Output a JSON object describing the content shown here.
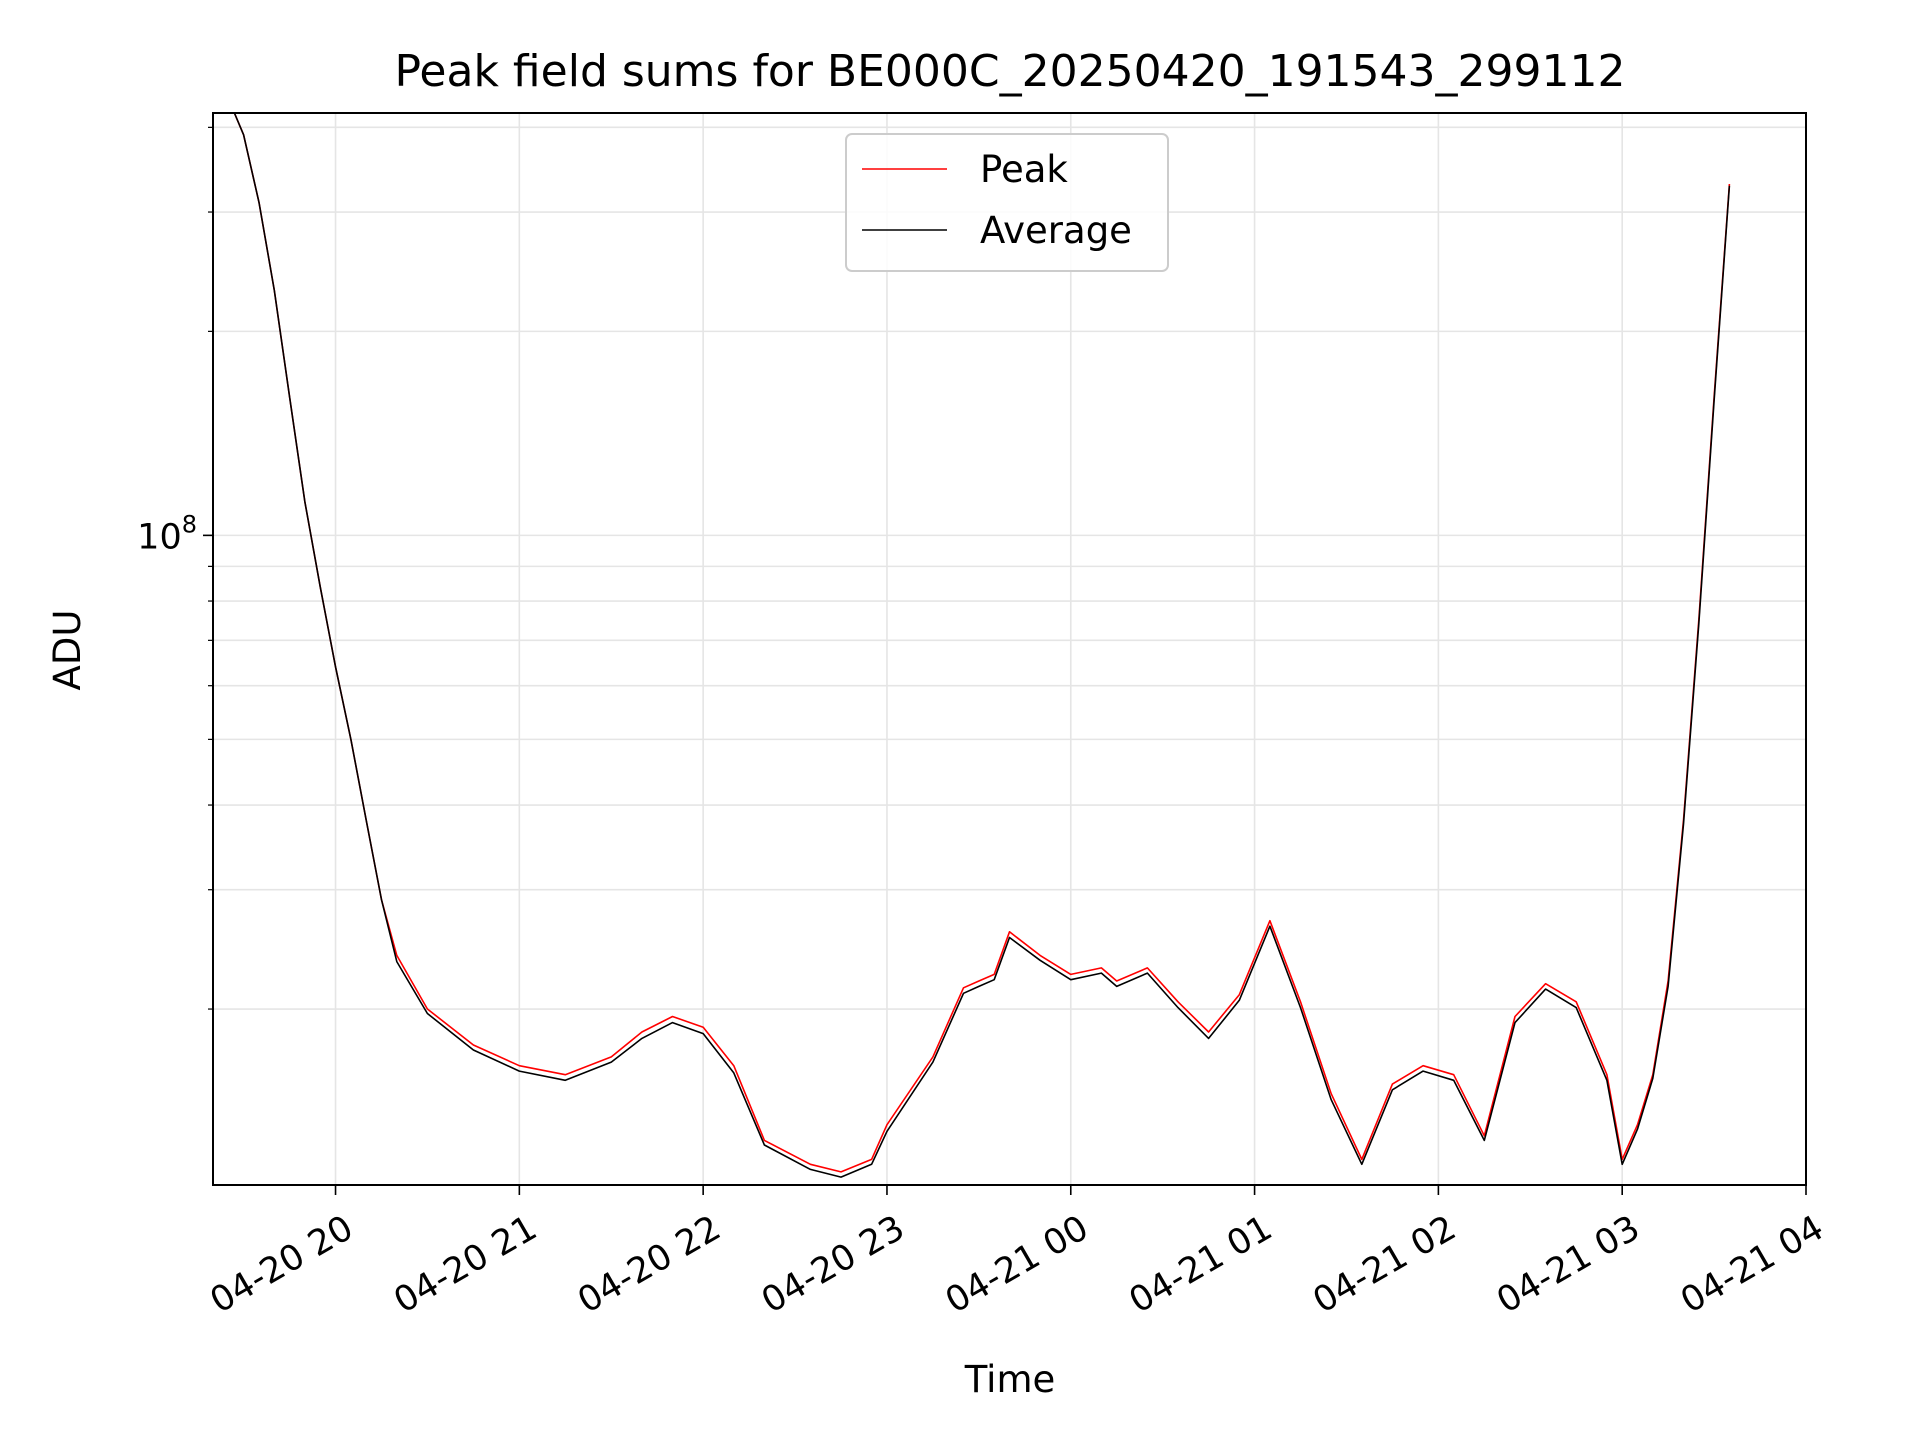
{
  "chart_data": {
    "type": "line",
    "title": "Peak field sums for BE000C_20250420_191543_299112",
    "xlabel": "Time",
    "ylabel": "ADU",
    "y_scale": "log",
    "grid": true,
    "legend_position": "top-center",
    "xlim": [
      "2025-04-20 19:20",
      "2025-04-21 04:00"
    ],
    "ylim": [
      11000000,
      420000000
    ],
    "x_ticks": [
      "04-20 20",
      "04-20 21",
      "04-20 22",
      "04-20 23",
      "04-21 00",
      "04-21 01",
      "04-21 02",
      "04-21 03",
      "04-21 04"
    ],
    "y_ticks": [
      {
        "value": 100000000,
        "label": "10^8"
      }
    ],
    "colors": {
      "peak": "#ff0000",
      "average": "#000000",
      "grid": "#e5e5e5"
    },
    "x": [
      "2025-04-20 19:27",
      "2025-04-20 19:30",
      "2025-04-20 19:35",
      "2025-04-20 19:40",
      "2025-04-20 19:45",
      "2025-04-20 19:50",
      "2025-04-20 19:55",
      "2025-04-20 20:00",
      "2025-04-20 20:05",
      "2025-04-20 20:10",
      "2025-04-20 20:15",
      "2025-04-20 20:20",
      "2025-04-20 20:30",
      "2025-04-20 20:45",
      "2025-04-20 21:00",
      "2025-04-20 21:15",
      "2025-04-20 21:30",
      "2025-04-20 21:40",
      "2025-04-20 21:50",
      "2025-04-20 22:00",
      "2025-04-20 22:10",
      "2025-04-20 22:20",
      "2025-04-20 22:35",
      "2025-04-20 22:45",
      "2025-04-20 22:55",
      "2025-04-20 23:00",
      "2025-04-20 23:15",
      "2025-04-20 23:25",
      "2025-04-20 23:30",
      "2025-04-20 23:35",
      "2025-04-20 23:40",
      "2025-04-20 23:50",
      "2025-04-21 00:00",
      "2025-04-21 00:10",
      "2025-04-21 00:15",
      "2025-04-21 00:25",
      "2025-04-21 00:35",
      "2025-04-21 00:45",
      "2025-04-21 00:55",
      "2025-04-21 01:05",
      "2025-04-21 01:15",
      "2025-04-21 01:25",
      "2025-04-21 01:35",
      "2025-04-21 01:45",
      "2025-04-21 01:55",
      "2025-04-21 02:05",
      "2025-04-21 02:15",
      "2025-04-21 02:25",
      "2025-04-21 02:35",
      "2025-04-21 02:45",
      "2025-04-21 02:55",
      "2025-04-21 03:00",
      "2025-04-21 03:05",
      "2025-04-21 03:10",
      "2025-04-21 03:15",
      "2025-04-21 03:20",
      "2025-04-21 03:25",
      "2025-04-21 03:30",
      "2025-04-21 03:35"
    ],
    "series": [
      {
        "name": "Peak",
        "color": "#ff0000",
        "values": [
          420000000,
          390000000,
          310000000,
          230000000,
          160000000,
          112000000,
          84000000,
          64000000,
          50000000,
          38000000,
          29000000,
          24000000,
          20000000,
          17700000,
          16500000,
          16000000,
          17000000,
          18500000,
          19500000,
          18800000,
          16500000,
          12800000,
          11800000,
          11500000,
          12000000,
          13500000,
          17000000,
          21500000,
          22000000,
          22500000,
          26000000,
          24000000,
          22500000,
          23000000,
          22000000,
          23000000,
          20500000,
          18500000,
          21000000,
          27000000,
          20500000,
          15000000,
          12000000,
          15500000,
          16500000,
          16000000,
          13000000,
          19500000,
          21800000,
          20500000,
          16000000,
          12000000,
          13500000,
          16000000,
          22000000,
          38000000,
          75000000,
          160000000,
          330000000
        ]
      },
      {
        "name": "Average",
        "color": "#000000",
        "values": [
          420000000,
          390000000,
          310000000,
          230000000,
          160000000,
          112000000,
          84000000,
          64000000,
          50000000,
          38000000,
          29000000,
          23500000,
          19700000,
          17400000,
          16200000,
          15700000,
          16700000,
          18100000,
          19100000,
          18400000,
          16100000,
          12600000,
          11600000,
          11300000,
          11800000,
          13200000,
          16700000,
          21100000,
          21600000,
          22100000,
          25500000,
          23600000,
          22100000,
          22600000,
          21600000,
          22600000,
          20100000,
          18100000,
          20600000,
          26500000,
          20100000,
          14700000,
          11800000,
          15200000,
          16200000,
          15700000,
          12800000,
          19100000,
          21400000,
          20100000,
          15700000,
          11800000,
          13300000,
          15800000,
          21600000,
          37500000,
          74000000,
          158000000,
          328000000
        ]
      }
    ]
  }
}
